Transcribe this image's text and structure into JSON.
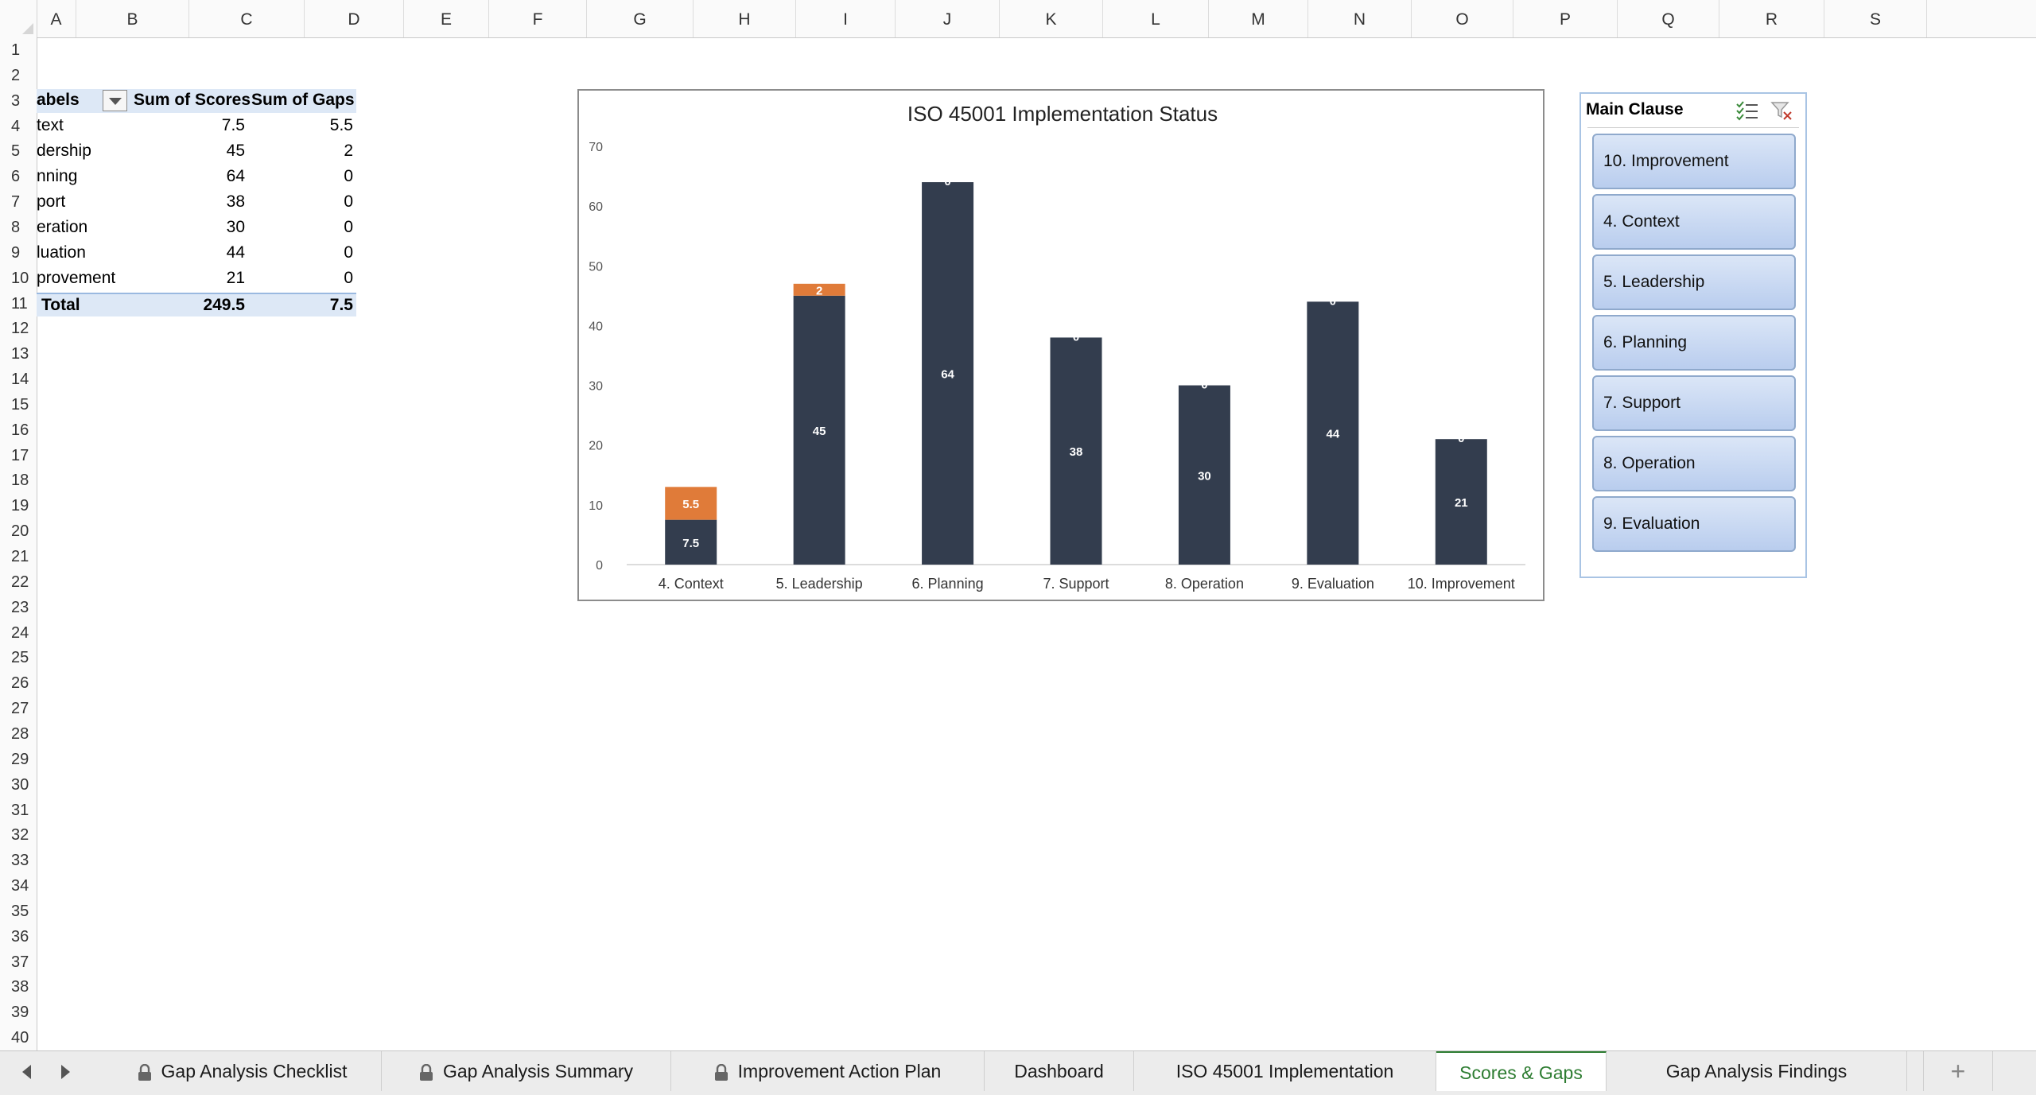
{
  "columns": [
    "A",
    "B",
    "C",
    "D",
    "E",
    "F",
    "G",
    "H",
    "I",
    "J",
    "K",
    "L",
    "M",
    "N",
    "O",
    "P",
    "Q",
    "R",
    "S"
  ],
  "rows": [
    "1",
    "2",
    "3",
    "4",
    "5",
    "6",
    "7",
    "8",
    "9",
    "10",
    "11",
    "12",
    "13",
    "14",
    "15",
    "16",
    "17",
    "18",
    "19",
    "20",
    "21",
    "22",
    "23",
    "24",
    "25",
    "26",
    "27",
    "28",
    "29",
    "30",
    "31",
    "32",
    "33",
    "34",
    "35",
    "36",
    "37",
    "38",
    "39",
    "40"
  ],
  "pivot": {
    "header": {
      "labels": "abels",
      "scores": "Sum of Scores",
      "gaps": "Sum of Gaps"
    },
    "rows": [
      {
        "label": "text",
        "scores": "7.5",
        "gaps": "5.5"
      },
      {
        "label": "dership",
        "scores": "45",
        "gaps": "2"
      },
      {
        "label": "nning",
        "scores": "64",
        "gaps": "0"
      },
      {
        "label": "port",
        "scores": "38",
        "gaps": "0"
      },
      {
        "label": "eration",
        "scores": "30",
        "gaps": "0"
      },
      {
        "label": "luation",
        "scores": "44",
        "gaps": "0"
      },
      {
        "label": "provement",
        "scores": "21",
        "gaps": "0"
      }
    ],
    "total": {
      "label": "Total",
      "scores": "249.5",
      "gaps": "7.5"
    }
  },
  "chart_data": {
    "type": "bar",
    "stacked": true,
    "title": "ISO 45001 Implementation Status",
    "categories": [
      "4. Context",
      "5. Leadership",
      "6. Planning",
      "7. Support",
      "8. Operation",
      "9. Evaluation",
      "10. Improvement"
    ],
    "series": [
      {
        "values": [
          7.5,
          45,
          64,
          38,
          30,
          44,
          21
        ],
        "color": "#333d4e"
      },
      {
        "values": [
          5.5,
          2,
          0,
          0,
          0,
          0,
          0
        ],
        "color": "#e07b39"
      }
    ],
    "ylim": [
      0,
      70
    ],
    "yticks": [
      "0",
      "10",
      "20",
      "30",
      "40",
      "50",
      "60",
      "70"
    ],
    "legend": "none",
    "grid": false
  },
  "slicer": {
    "title": "Main Clause",
    "items": [
      "10. Improvement",
      "4. Context",
      "5. Leadership",
      "6. Planning",
      "7. Support",
      "8. Operation",
      "9. Evaluation"
    ],
    "icons": [
      "multi-select-icon",
      "clear-filter-icon"
    ]
  },
  "sheet_tabs": [
    {
      "label": "Gap Analysis Checklist",
      "locked": true,
      "active": false
    },
    {
      "label": "Gap Analysis Summary",
      "locked": true,
      "active": false
    },
    {
      "label": "Improvement Action Plan",
      "locked": true,
      "active": false
    },
    {
      "label": "Dashboard",
      "locked": false,
      "active": false
    },
    {
      "label": "ISO 45001 Implementation",
      "locked": false,
      "active": false
    },
    {
      "label": "Scores & Gaps",
      "locked": false,
      "active": true
    },
    {
      "label": "Gap Analysis Findings",
      "locked": false,
      "active": false
    }
  ],
  "add_sheet": "+",
  "accent_color": "#2e7d32"
}
